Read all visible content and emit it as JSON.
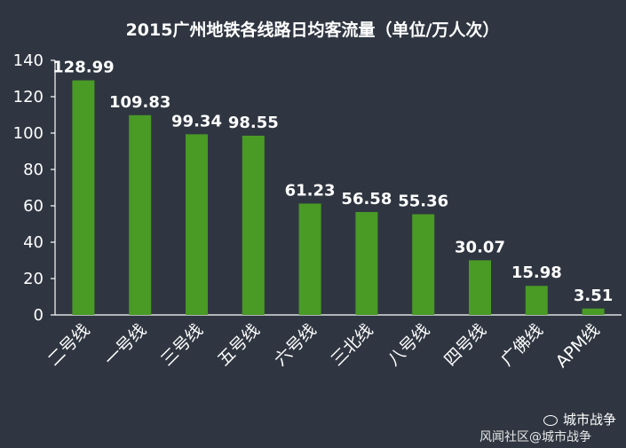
{
  "chart_data": {
    "type": "bar",
    "title": "2015广州地铁各线路日均客流量（单位/万人次）",
    "categories": [
      "二号线",
      "一号线",
      "三号线",
      "五号线",
      "六号线",
      "三北线",
      "八号线",
      "四号线",
      "广佛线",
      "APM线"
    ],
    "values": [
      128.99,
      109.83,
      99.34,
      98.55,
      61.23,
      56.58,
      55.36,
      30.07,
      15.98,
      3.51
    ],
    "value_labels": [
      "128.99",
      "109.83",
      "99.34",
      "98.55",
      "61.23",
      "56.58",
      "55.36",
      "30.07",
      "15.98",
      "3.51"
    ],
    "ylim": [
      0,
      140
    ],
    "yticks": [
      0,
      20,
      40,
      60,
      80,
      100,
      120,
      140
    ],
    "xlabel": "",
    "ylabel": "",
    "grid": false,
    "bar_color": "#4a9a26",
    "background_color": "#2f3641"
  },
  "watermark": {
    "account": "城市战争",
    "source": "风闻社区@城市战争"
  }
}
